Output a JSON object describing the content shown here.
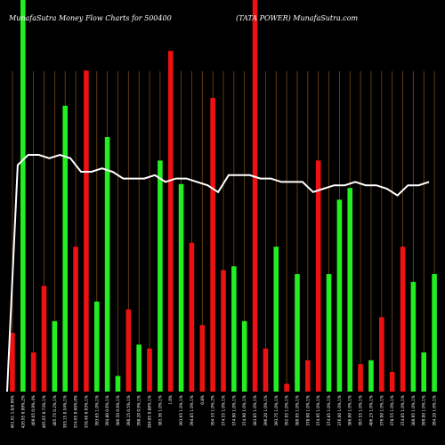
{
  "chart_data": {
    "type": "bar",
    "title_left": "MunafaSutra  Money Flow  Charts for 500400",
    "title_right": "(TATA POWER) MunafaSutra.com",
    "series": [
      {
        "kind": "bar",
        "values": [
          {
            "color": "red",
            "height": 0.15
          },
          {
            "color": "green",
            "height": 1.0
          },
          {
            "color": "red",
            "height": 0.1
          },
          {
            "color": "red",
            "height": 0.27
          },
          {
            "color": "green",
            "height": 0.18
          },
          {
            "color": "green",
            "height": 0.73
          },
          {
            "color": "red",
            "height": 0.37
          },
          {
            "color": "red",
            "height": 0.82
          },
          {
            "color": "green",
            "height": 0.23
          },
          {
            "color": "green",
            "height": 0.65
          },
          {
            "color": "green",
            "height": 0.04
          },
          {
            "color": "red",
            "height": 0.21
          },
          {
            "color": "green",
            "height": 0.12
          },
          {
            "color": "red",
            "height": 0.11
          },
          {
            "color": "green",
            "height": 0.59
          },
          {
            "color": "red",
            "height": 0.87
          },
          {
            "color": "green",
            "height": 0.53
          },
          {
            "color": "red",
            "height": 0.38
          },
          {
            "color": "red",
            "height": 0.17
          },
          {
            "color": "red",
            "height": 0.75
          },
          {
            "color": "red",
            "height": 0.31
          },
          {
            "color": "green",
            "height": 0.32
          },
          {
            "color": "green",
            "height": 0.18
          },
          {
            "color": "red",
            "height": 1.0
          },
          {
            "color": "red",
            "height": 0.11
          },
          {
            "color": "green",
            "height": 0.37
          },
          {
            "color": "red",
            "height": 0.02
          },
          {
            "color": "green",
            "height": 0.3
          },
          {
            "color": "red",
            "height": 0.08
          },
          {
            "color": "red",
            "height": 0.59
          },
          {
            "color": "green",
            "height": 0.3
          },
          {
            "color": "green",
            "height": 0.49
          },
          {
            "color": "green",
            "height": 0.52
          },
          {
            "color": "red",
            "height": 0.07
          },
          {
            "color": "green",
            "height": 0.08
          },
          {
            "color": "red",
            "height": 0.19
          },
          {
            "color": "red",
            "height": 0.05
          },
          {
            "color": "red",
            "height": 0.37
          },
          {
            "color": "green",
            "height": 0.28
          },
          {
            "color": "green",
            "height": 0.1
          },
          {
            "color": "green",
            "height": 0.3
          }
        ]
      },
      {
        "kind": "line",
        "values": [
          0.0,
          0.67,
          0.7,
          0.7,
          0.69,
          0.7,
          0.69,
          0.65,
          0.65,
          0.66,
          0.65,
          0.63,
          0.63,
          0.63,
          0.64,
          0.62,
          0.63,
          0.63,
          0.62,
          0.61,
          0.59,
          0.64,
          0.64,
          0.64,
          0.63,
          0.63,
          0.62,
          0.62,
          0.62,
          0.59,
          0.6,
          0.61,
          0.61,
          0.62,
          0.61,
          0.61,
          0.6,
          0.58,
          0.61,
          0.61,
          0.62
        ]
      }
    ],
    "x_labels": [
      "461.61 1.0/0.96%",
      "426.95 0.99%,2%",
      "409.65 0.9%,4%",
      "405.65 0.73%,1%",
      "405.75 0.2%,1%",
      "393.15 0.54%,1%",
      "374.65 0.60%,0%",
      "378.40 0.93%,1%",
      "393.65 1.0%,1%",
      "394.80 0.6%,1%",
      "386.50 0.9%,1%",
      "390.15 0.5%,1%",
      "398.20 0.9%,1%",
      "384.85 0.88%,1%",
      "383.36 1.0%,1%",
      "1.0%",
      "393.65 1.0%,1%",
      "394.85 1.0%,1%",
      "0.8%",
      "394.33 1.0%,2%",
      "374.55 1.0%,1%",
      "374.90 1.0%,1%",
      "374.90 1.0%,1%",
      "383.85 1.0%,1%",
      "396.20 1.0%,1%",
      "393.75 1.0%,1%",
      "392.95 1.0%,1%",
      "380.95 1.0%,1%",
      "378.60 1.0%,1%",
      "374.95 1.0%,1%",
      "374.85 1.0%,1%",
      "376.00 1.0%,1%",
      "386.00 1.0%,1%",
      "397.55 1.0%,1%",
      "406.25 1.0%,1%",
      "376.00 1.0%,1%",
      "378.55 1.0%,1%",
      "374.85 1.0%,1%",
      "389.95 1.0%,1%",
      "399.00 1.0%,1%",
      "394.20 1.0%,1%"
    ],
    "ylim": [
      0,
      1
    ],
    "grid": true,
    "legend": "none",
    "colors": {
      "background": "#000000",
      "up": "#22ee22",
      "down": "#ee1111",
      "line": "#ffffff",
      "grid": "#7a4a12"
    }
  }
}
